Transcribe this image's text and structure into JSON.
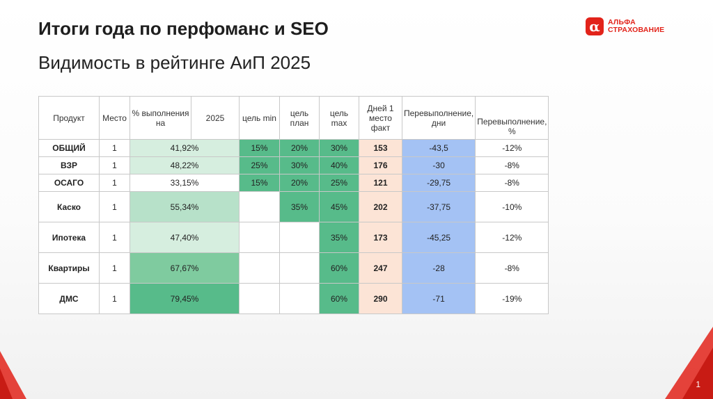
{
  "title": "Итоги года по перфоманс и SEO",
  "subtitle": "Видимость в рейтинге АиП 2025",
  "logo": {
    "line1": "АЛЬФА",
    "line2": "СТРАХОВАНИЕ",
    "mark": "α"
  },
  "page_number": "1",
  "table": {
    "headers": [
      "Продукт",
      "Место",
      "% выполнения на",
      "2025",
      "цель min",
      "цель план",
      "цель max",
      "Дней 1 место факт",
      "Перевыполнение, дни",
      "Перевыполнение, %"
    ],
    "rows": [
      {
        "product": "ОБЩИЙ",
        "place": "1",
        "pct": "41,92%",
        "min": "15%",
        "plan": "20%",
        "max": "30%",
        "days": "153",
        "over_days": "-43,5",
        "over_pct": "-12%"
      },
      {
        "product": "ВЗР",
        "place": "1",
        "pct": "48,22%",
        "min": "25%",
        "plan": "30%",
        "max": "40%",
        "days": "176",
        "over_days": "-30",
        "over_pct": "-8%"
      },
      {
        "product": "ОСАГО",
        "place": "1",
        "pct": "33,15%",
        "min": "15%",
        "plan": "20%",
        "max": "25%",
        "days": "121",
        "over_days": "-29,75",
        "over_pct": "-8%"
      },
      {
        "product": "Каско",
        "place": "1",
        "pct": "55,34%",
        "min": "",
        "plan": "35%",
        "max": "45%",
        "days": "202",
        "over_days": "-37,75",
        "over_pct": "-10%"
      },
      {
        "product": "Ипотека",
        "place": "1",
        "pct": "47,40%",
        "min": "",
        "plan": "",
        "max": "35%",
        "days": "173",
        "over_days": "-45,25",
        "over_pct": "-12%"
      },
      {
        "product": "Квартиры",
        "place": "1",
        "pct": "67,67%",
        "min": "",
        "plan": "",
        "max": "60%",
        "days": "247",
        "over_days": "-28",
        "over_pct": "-8%"
      },
      {
        "product": "ДМС",
        "place": "1",
        "pct": "79,45%",
        "min": "",
        "plan": "",
        "max": "60%",
        "days": "290",
        "over_days": "-71",
        "over_pct": "-19%"
      }
    ]
  },
  "colors": {
    "accent_red": "#e2231a",
    "green_dark": "#57bb8a",
    "salmon": "#fce4d6",
    "blue": "#a4c2f4"
  }
}
